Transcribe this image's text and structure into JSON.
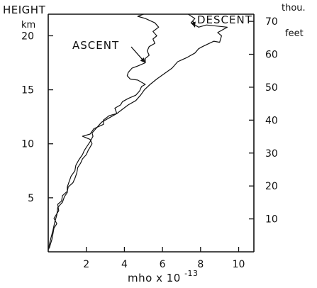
{
  "chart_data": {
    "type": "line",
    "y_left_label": "HEIGHT",
    "y_left_unit": "km",
    "y_right_label": "thou.",
    "y_right_unit": "feet",
    "xlabel_base": "mho x 10",
    "xlabel_exp": "-13",
    "xlim": [
      0,
      10.8
    ],
    "ylim_km": [
      0,
      22
    ],
    "x_ticks": [
      2,
      4,
      6,
      8,
      10
    ],
    "x_tick_labels": [
      "2",
      "4",
      "6",
      "8",
      "10"
    ],
    "y_left_ticks": [
      5,
      10,
      15,
      20
    ],
    "y_left_tick_labels": [
      "5",
      "10",
      "15",
      "20"
    ],
    "y_right_ticks_thou_ft": [
      10,
      20,
      30,
      40,
      50,
      60,
      70
    ],
    "y_right_tick_labels": [
      "10",
      "20",
      "30",
      "40",
      "50",
      "60",
      "70"
    ],
    "grid": false,
    "annotations": [
      {
        "text": "DESCENT",
        "arrow_to": [
          7.7,
          20.8
        ]
      },
      {
        "text": "ASCENT",
        "arrow_to": [
          5.1,
          17.5
        ]
      }
    ],
    "series": [
      {
        "name": "ASCENT",
        "points": [
          [
            0.05,
            0.3
          ],
          [
            0.2,
            1.2
          ],
          [
            0.3,
            2.2
          ],
          [
            0.45,
            2.6
          ],
          [
            0.3,
            3.1
          ],
          [
            0.55,
            3.8
          ],
          [
            0.5,
            4.4
          ],
          [
            0.7,
            4.7
          ],
          [
            0.75,
            5.2
          ],
          [
            1.0,
            5.6
          ],
          [
            1.05,
            6.0
          ],
          [
            1.3,
            6.4
          ],
          [
            1.4,
            6.8
          ],
          [
            1.5,
            7.3
          ],
          [
            1.55,
            7.8
          ],
          [
            1.7,
            8.2
          ],
          [
            1.8,
            8.6
          ],
          [
            2.0,
            9.0
          ],
          [
            2.1,
            9.4
          ],
          [
            2.2,
            9.7
          ],
          [
            2.3,
            10.0
          ],
          [
            2.2,
            10.4
          ],
          [
            1.8,
            10.7
          ],
          [
            2.2,
            10.9
          ],
          [
            2.4,
            11.4
          ],
          [
            2.9,
            11.8
          ],
          [
            2.9,
            12.2
          ],
          [
            3.2,
            12.6
          ],
          [
            3.6,
            12.8
          ],
          [
            3.5,
            13.3
          ],
          [
            3.8,
            13.6
          ],
          [
            3.9,
            13.9
          ],
          [
            4.2,
            14.2
          ],
          [
            4.6,
            14.5
          ],
          [
            4.8,
            14.9
          ],
          [
            4.9,
            15.3
          ],
          [
            5.1,
            15.5
          ],
          [
            4.7,
            15.9
          ],
          [
            4.3,
            16.0
          ],
          [
            4.15,
            16.3
          ],
          [
            4.2,
            16.6
          ],
          [
            4.4,
            17.0
          ],
          [
            4.7,
            17.2
          ],
          [
            5.1,
            17.5
          ],
          [
            5.1,
            17.9
          ],
          [
            5.3,
            18.2
          ],
          [
            5.2,
            18.6
          ],
          [
            5.3,
            19.0
          ],
          [
            5.6,
            19.3
          ],
          [
            5.5,
            19.7
          ],
          [
            5.7,
            20.0
          ],
          [
            5.5,
            20.4
          ],
          [
            5.8,
            20.8
          ],
          [
            5.6,
            21.2
          ],
          [
            5.1,
            21.6
          ],
          [
            4.7,
            21.8
          ],
          [
            5.0,
            22.0
          ]
        ]
      },
      {
        "name": "DESCENT",
        "points": [
          [
            0.0,
            0.2
          ],
          [
            0.1,
            1.0
          ],
          [
            0.25,
            2.0
          ],
          [
            0.35,
            2.8
          ],
          [
            0.45,
            3.4
          ],
          [
            0.5,
            4.1
          ],
          [
            0.75,
            4.6
          ],
          [
            0.85,
            5.1
          ],
          [
            1.0,
            5.5
          ],
          [
            1.0,
            6.0
          ],
          [
            1.1,
            6.5
          ],
          [
            1.2,
            7.0
          ],
          [
            1.4,
            7.5
          ],
          [
            1.45,
            8.0
          ],
          [
            1.6,
            8.5
          ],
          [
            1.8,
            9.0
          ],
          [
            1.9,
            9.4
          ],
          [
            2.05,
            9.8
          ],
          [
            2.2,
            10.2
          ],
          [
            2.35,
            10.7
          ],
          [
            2.3,
            11.0
          ],
          [
            2.55,
            11.5
          ],
          [
            2.8,
            12.0
          ],
          [
            3.2,
            12.4
          ],
          [
            3.6,
            12.8
          ],
          [
            3.9,
            13.2
          ],
          [
            4.2,
            13.6
          ],
          [
            4.6,
            14.0
          ],
          [
            4.85,
            14.5
          ],
          [
            5.05,
            15.0
          ],
          [
            5.35,
            15.5
          ],
          [
            5.7,
            16.0
          ],
          [
            6.1,
            16.5
          ],
          [
            6.5,
            17.0
          ],
          [
            6.8,
            17.6
          ],
          [
            7.3,
            18.0
          ],
          [
            7.7,
            18.4
          ],
          [
            7.9,
            18.8
          ],
          [
            8.1,
            19.0
          ],
          [
            8.7,
            19.5
          ],
          [
            9.0,
            19.4
          ],
          [
            9.1,
            20.0
          ],
          [
            8.9,
            20.3
          ],
          [
            9.4,
            20.8
          ],
          [
            8.3,
            21.0
          ],
          [
            7.9,
            20.8
          ],
          [
            7.5,
            21.2
          ],
          [
            7.7,
            21.6
          ],
          [
            7.35,
            22.0
          ]
        ]
      }
    ]
  }
}
